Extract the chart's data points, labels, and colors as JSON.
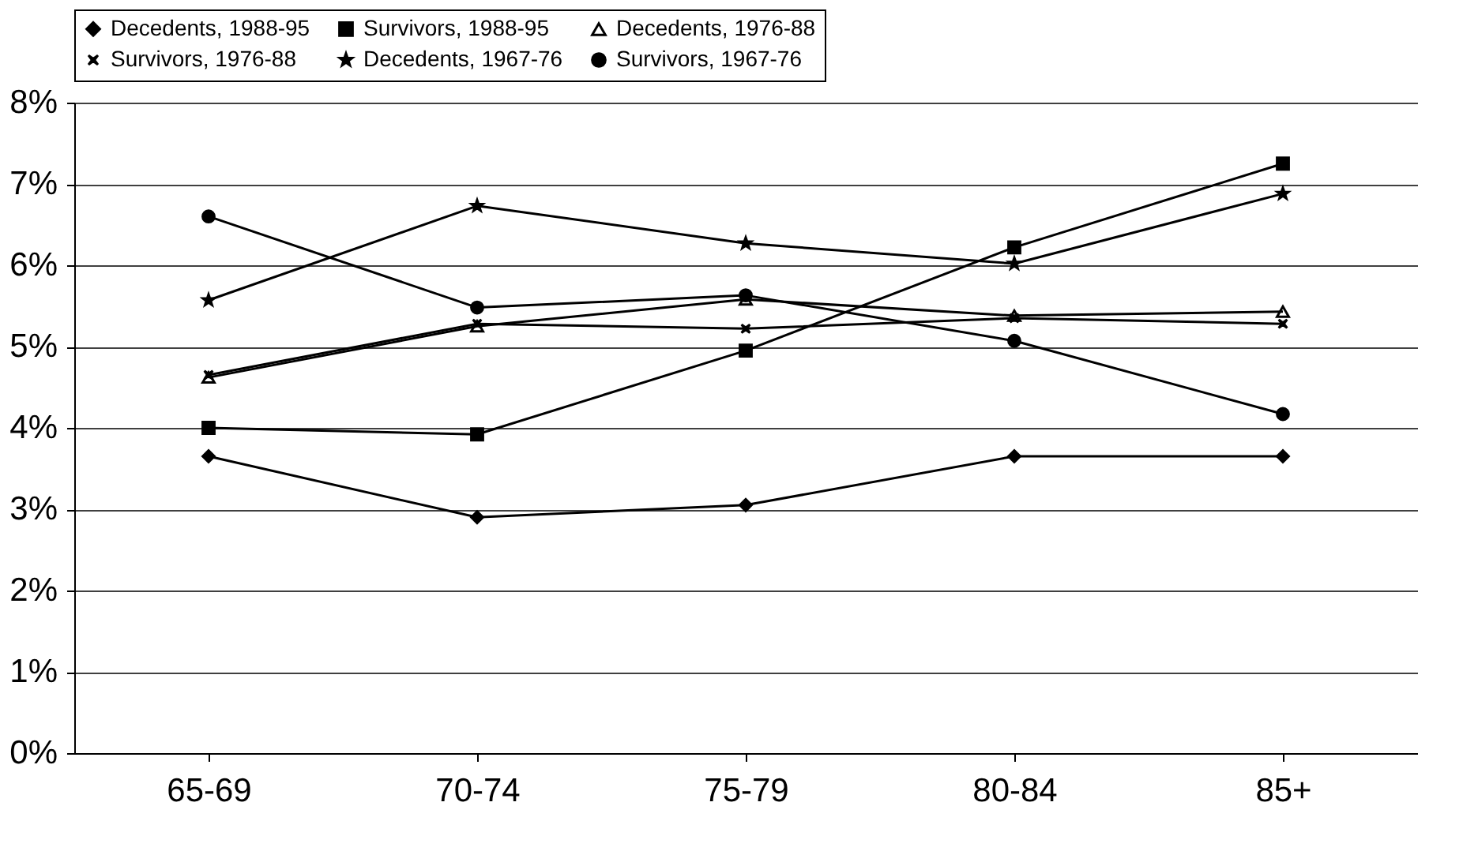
{
  "chart_data": {
    "type": "line",
    "categories": [
      "65-69",
      "70-74",
      "75-79",
      "80-84",
      "85+"
    ],
    "series": [
      {
        "name": "Decedents, 1988-95",
        "color": "#000000",
        "marker": "diamond",
        "values": [
          3.65,
          2.9,
          3.05,
          3.65,
          3.65
        ]
      },
      {
        "name": "Survivors, 1988-95",
        "color": "#000000",
        "marker": "square",
        "values": [
          4.0,
          3.92,
          4.95,
          6.22,
          7.25
        ]
      },
      {
        "name": "Decedents, 1976-88",
        "color": "#000000",
        "marker": "triangle",
        "values": [
          4.62,
          5.25,
          5.58,
          5.38,
          5.43
        ]
      },
      {
        "name": "Survivors, 1976-88",
        "color": "#000000",
        "marker": "cross",
        "values": [
          4.65,
          5.28,
          5.22,
          5.35,
          5.28
        ]
      },
      {
        "name": "Decedents, 1967-76",
        "color": "#000000",
        "marker": "star",
        "values": [
          5.57,
          6.73,
          6.27,
          6.02,
          6.88
        ]
      },
      {
        "name": "Survivors, 1967-76",
        "color": "#000000",
        "marker": "circle",
        "values": [
          6.6,
          5.48,
          5.63,
          5.07,
          4.17
        ]
      }
    ],
    "ylim": [
      0,
      8
    ],
    "yticks": [
      {
        "value": 0,
        "label": "0%"
      },
      {
        "value": 1,
        "label": "1%"
      },
      {
        "value": 2,
        "label": "2%"
      },
      {
        "value": 3,
        "label": "3%"
      },
      {
        "value": 4,
        "label": "4%"
      },
      {
        "value": 5,
        "label": "5%"
      },
      {
        "value": 6,
        "label": "6%"
      },
      {
        "value": 7,
        "label": "7%"
      },
      {
        "value": 8,
        "label": "8%"
      }
    ],
    "grid": "y",
    "legend": "top",
    "line_style": "solid"
  }
}
